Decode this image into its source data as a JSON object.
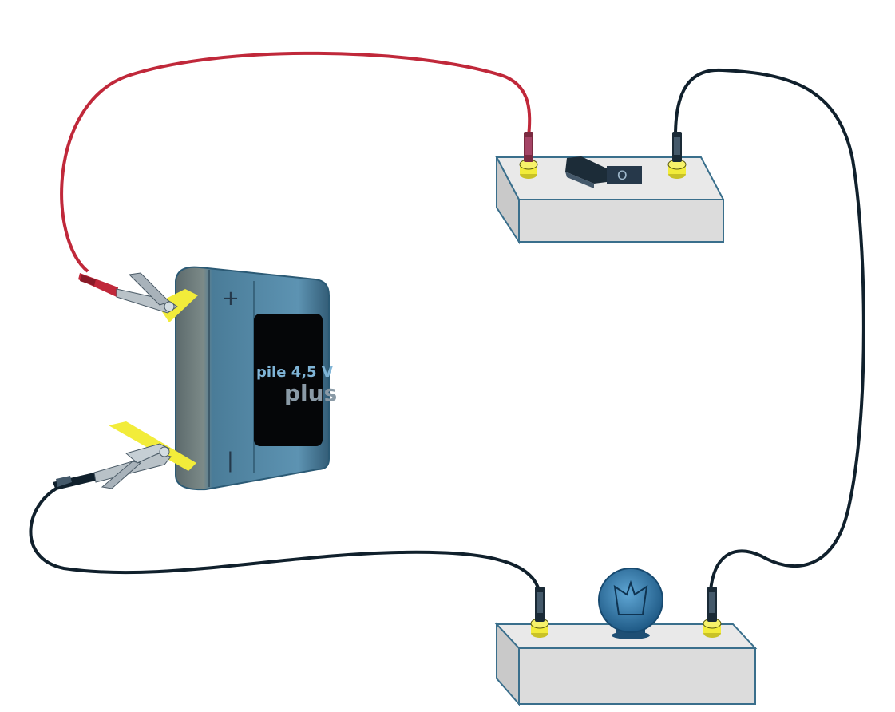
{
  "battery": {
    "label_line1": "pile 4,5 V",
    "label_line2": "plus",
    "plus_sign": "+",
    "minus_sign": "|"
  },
  "switch": {
    "mark": "O"
  },
  "colors": {
    "positive_wire": "#c0283a",
    "negative_wire": "#10202c",
    "terminal": "#f2ec3a",
    "box_face": "#dcdcdc",
    "box_outline": "#3a6f8c",
    "battery_body": "#4f7d98",
    "bulb": "#2f6c9c"
  },
  "icons": [
    "battery-icon",
    "switch-icon",
    "lamp-icon",
    "alligator-clip-icon",
    "banana-plug-icon"
  ]
}
